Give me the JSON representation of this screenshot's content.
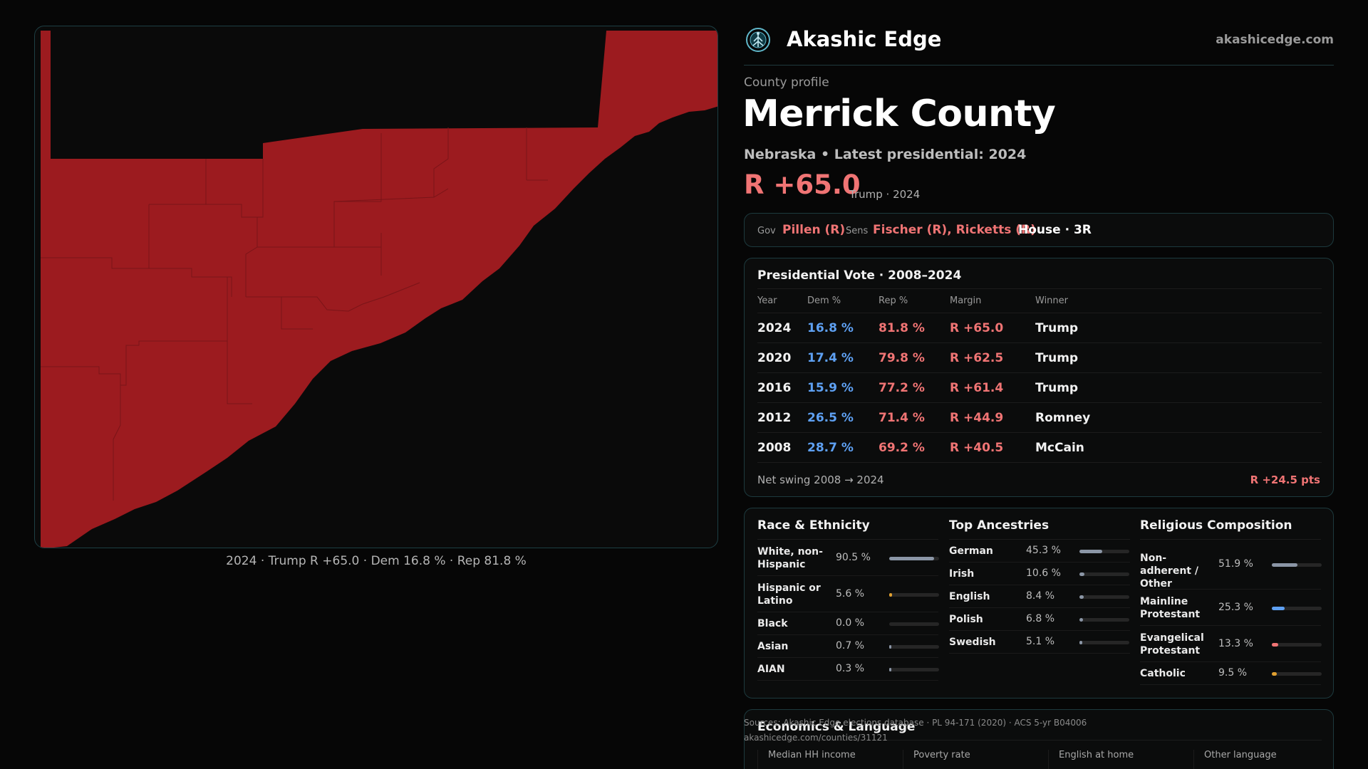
{
  "map": {
    "caption": "2024 · Trump R +65.0 · Dem 16.8 % · Rep 81.8 %",
    "fill_color": "#9c1b1f",
    "border_color": "#7a1418"
  },
  "header": {
    "logo_icon": "tree-of-life-logo",
    "brand": "Akashic Edge",
    "site": "akashicedge.com"
  },
  "profile": {
    "eyebrow": "County profile",
    "title": "Merrick County",
    "subtitle": "Nebraska • Latest presidential: 2024",
    "margin": "R +65.0",
    "margin_note": "Trump · 2024"
  },
  "officials": {
    "gov_label": "Gov",
    "gov_value": "Pillen (R)",
    "sens_label": "Sens",
    "sens_value": "Fischer (R), Ricketts (R)",
    "house": "House · 3R"
  },
  "presidential": {
    "title": "Presidential Vote · 2008–2024",
    "columns": [
      "Year",
      "Dem %",
      "Rep %",
      "Margin",
      "Winner"
    ],
    "rows": [
      {
        "year": "2024",
        "dem": "16.8 %",
        "rep": "81.8 %",
        "margin": "R +65.0",
        "winner": "Trump"
      },
      {
        "year": "2020",
        "dem": "17.4 %",
        "rep": "79.8 %",
        "margin": "R +62.5",
        "winner": "Trump"
      },
      {
        "year": "2016",
        "dem": "15.9 %",
        "rep": "77.2 %",
        "margin": "R +61.4",
        "winner": "Trump"
      },
      {
        "year": "2012",
        "dem": "26.5 %",
        "rep": "71.4 %",
        "margin": "R +44.9",
        "winner": "Romney"
      },
      {
        "year": "2008",
        "dem": "28.7 %",
        "rep": "69.2 %",
        "margin": "R +40.5",
        "winner": "McCain"
      }
    ],
    "swing_label": "Net swing 2008 → 2024",
    "swing_value": "R +24.5 pts"
  },
  "race": {
    "title": "Race & Ethnicity",
    "items": [
      {
        "name": "White, non-Hispanic",
        "pct": "90.5 %",
        "value": 90.5,
        "color": "#8b96a6"
      },
      {
        "name": "Hispanic or Latino",
        "pct": "5.6 %",
        "value": 5.6,
        "color": "#e0a030"
      },
      {
        "name": "Black",
        "pct": "0.0 %",
        "value": 0.0,
        "color": "#8b96a6"
      },
      {
        "name": "Asian",
        "pct": "0.7 %",
        "value": 0.7,
        "color": "#8b96a6"
      },
      {
        "name": "AIAN",
        "pct": "0.3 %",
        "value": 0.3,
        "color": "#8b96a6"
      }
    ]
  },
  "ancestry": {
    "title": "Top Ancestries",
    "items": [
      {
        "name": "German",
        "pct": "45.3 %",
        "value": 45.3,
        "color": "#8b96a6"
      },
      {
        "name": "Irish",
        "pct": "10.6 %",
        "value": 10.6,
        "color": "#8b96a6"
      },
      {
        "name": "English",
        "pct": "8.4 %",
        "value": 8.4,
        "color": "#8b96a6"
      },
      {
        "name": "Polish",
        "pct": "6.8 %",
        "value": 6.8,
        "color": "#8b96a6"
      },
      {
        "name": "Swedish",
        "pct": "5.1 %",
        "value": 5.1,
        "color": "#8b96a6"
      }
    ]
  },
  "religion": {
    "title": "Religious Composition",
    "items": [
      {
        "name": "Non-adherent / Other",
        "pct": "51.9 %",
        "value": 51.9,
        "color": "#8b96a6"
      },
      {
        "name": "Mainline Protestant",
        "pct": "25.3 %",
        "value": 25.3,
        "color": "#5ea0f2"
      },
      {
        "name": "Evangelical Protestant",
        "pct": "13.3 %",
        "value": 13.3,
        "color": "#f07474"
      },
      {
        "name": "Catholic",
        "pct": "9.5 %",
        "value": 9.5,
        "color": "#e0a030"
      }
    ]
  },
  "economics": {
    "title": "Economics & Language",
    "columns": [
      "Median HH income",
      "Poverty rate",
      "English at home",
      "Other language"
    ]
  },
  "sources": {
    "line1": "Sources: Akashic Edge elections database · PL 94-171 (2020) · ACS 5-yr B04006",
    "line2": "akashicedge.com/counties/31121"
  }
}
